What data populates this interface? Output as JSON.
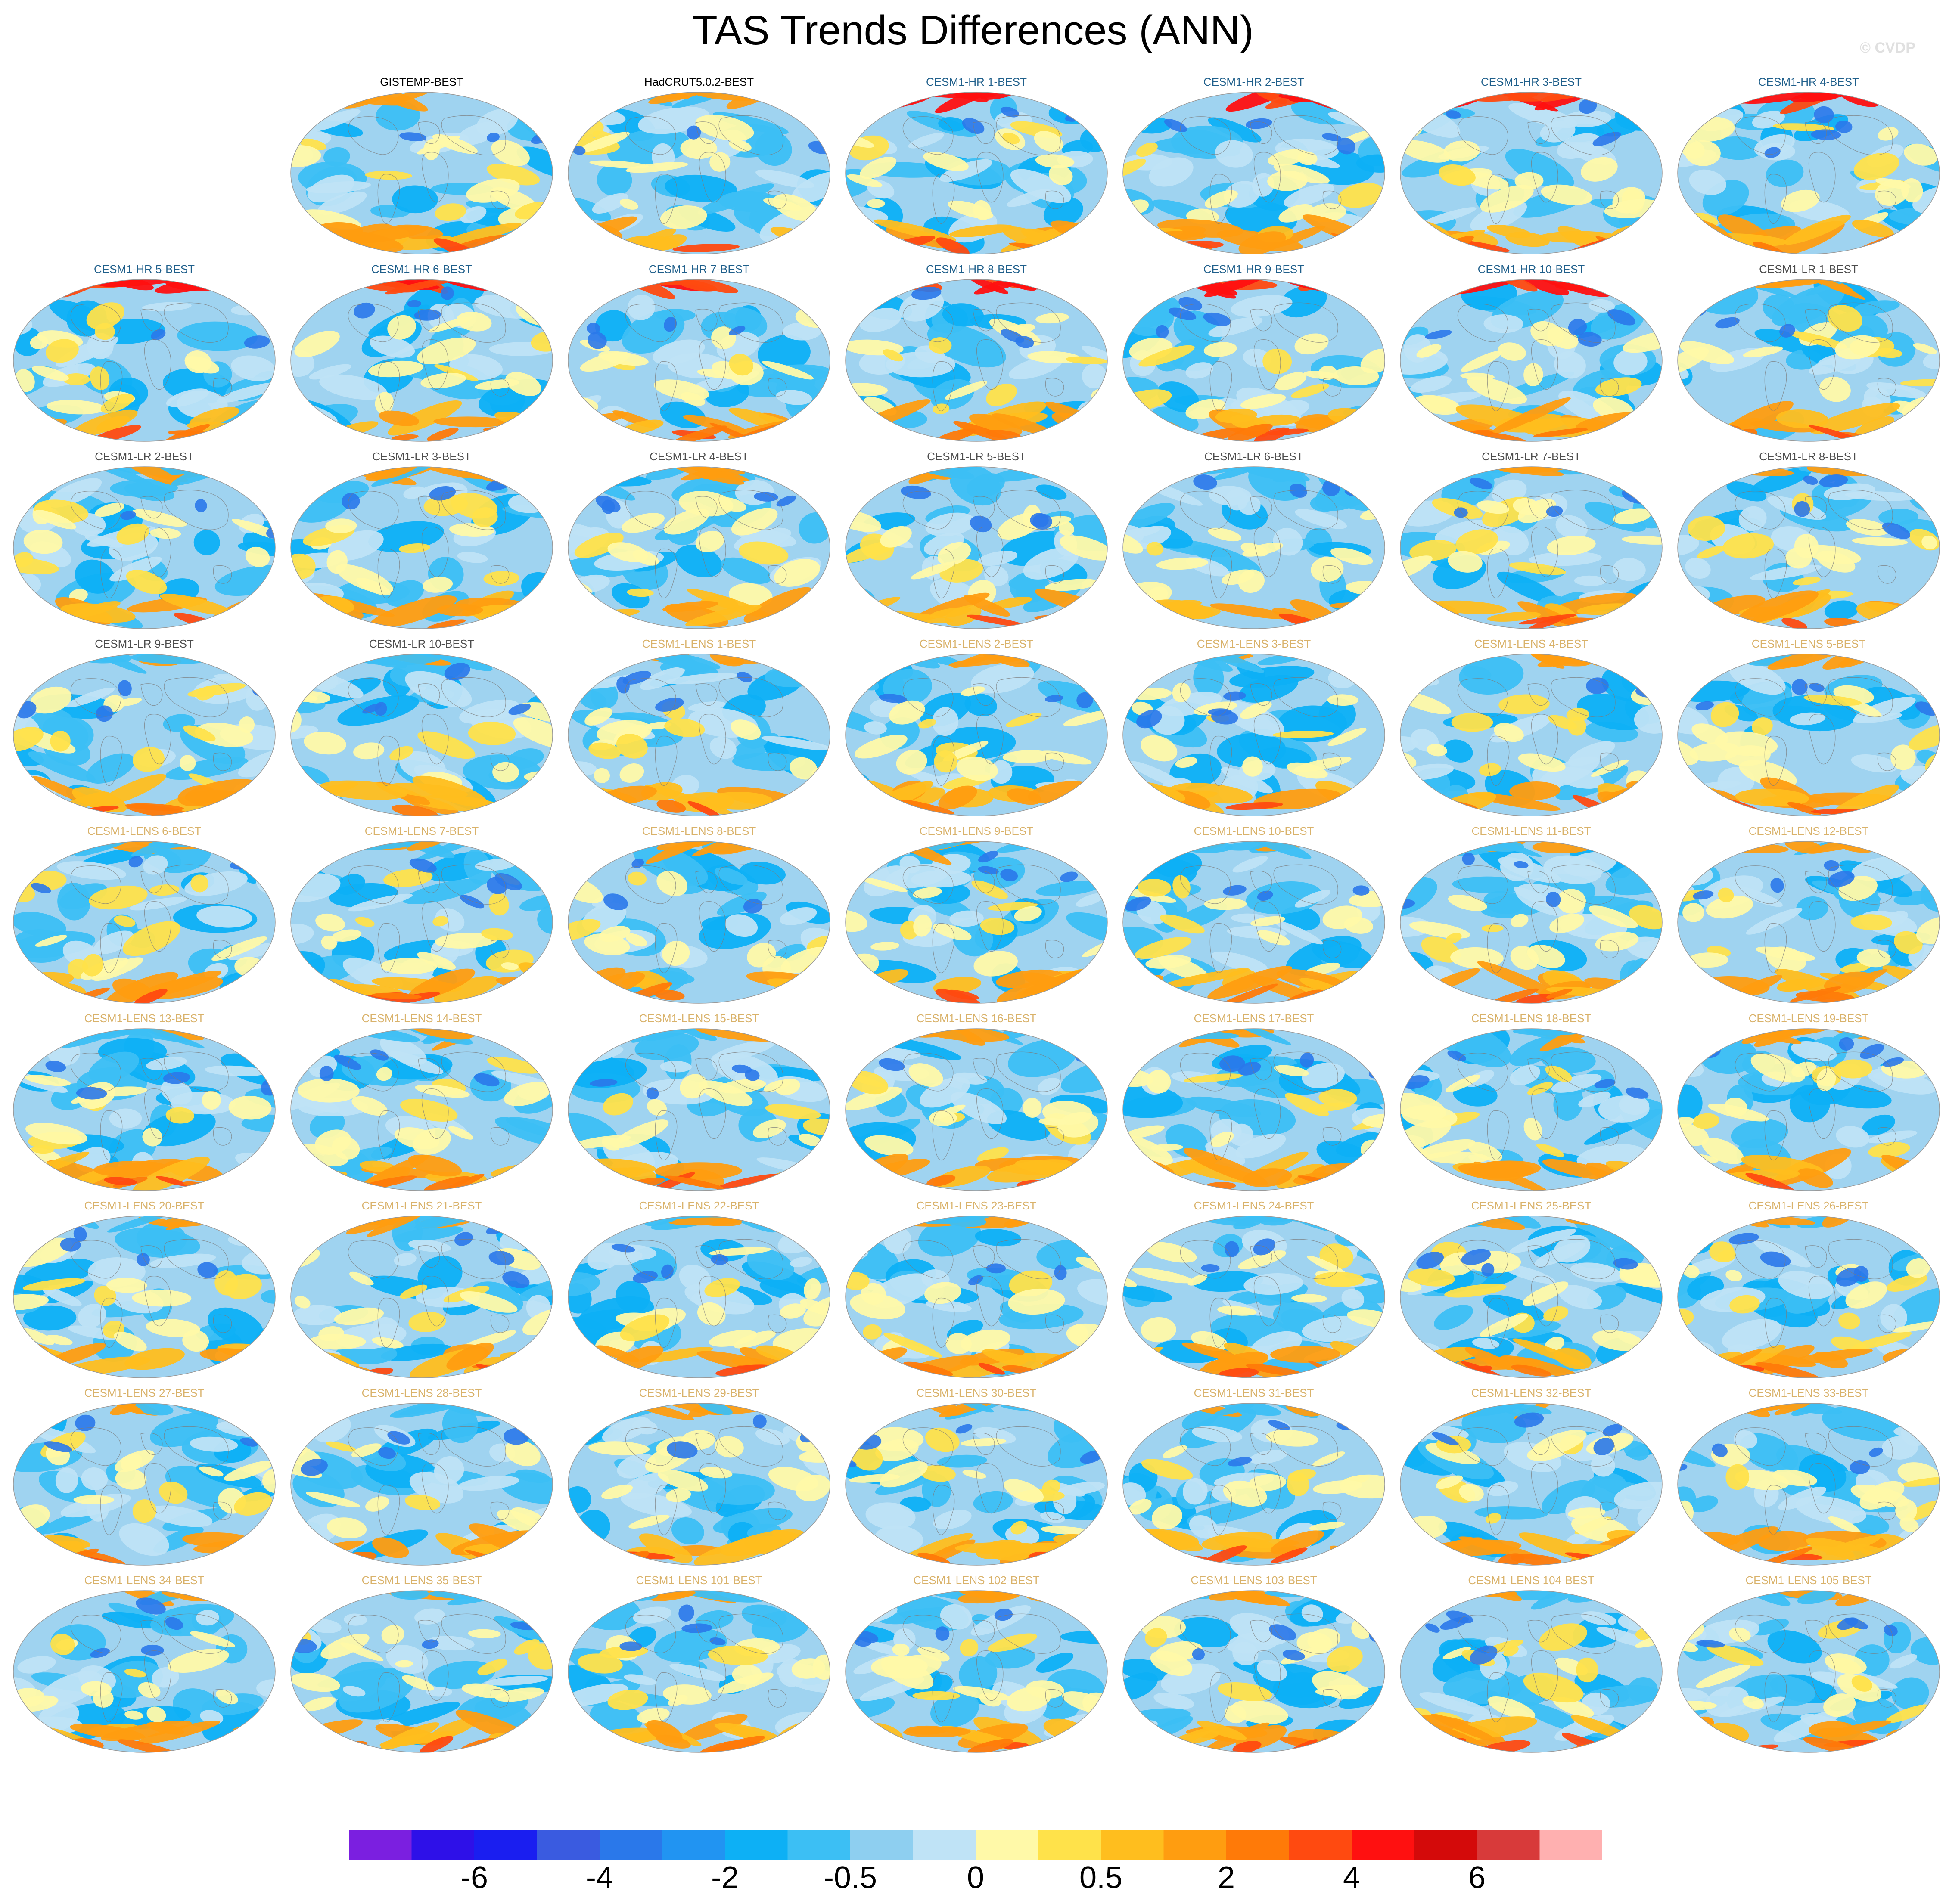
{
  "title": "TAS Trends Differences (ANN)",
  "watermark": "© CVDP",
  "colors": {
    "obs_label": "#000000",
    "hr_label": "#1f5f8b",
    "lr_label": "#4d4d4d",
    "lens_label": "#d9b26a",
    "ocean_base": "#9fd3f0"
  },
  "chart_data": {
    "type": "heatmap",
    "projection": "robinson",
    "grid": false,
    "colorbar": {
      "placement": "bottom",
      "colors": [
        "#7b1fe0",
        "#2e10e8",
        "#1a1ef0",
        "#3a5be0",
        "#2a78ea",
        "#2194f2",
        "#0db0f5",
        "#3cbff4",
        "#8ecff0",
        "#bfe3f6",
        "#fff9a8",
        "#ffe24a",
        "#ffbe1e",
        "#ff9d10",
        "#ff7a08",
        "#ff4a10",
        "#ff1010",
        "#d40a0a",
        "#d83a3a",
        "#ffb0b0"
      ],
      "tick_labels": [
        "-6",
        "-4",
        "-2",
        "-0.5",
        "0",
        "0.5",
        "2",
        "4",
        "6"
      ],
      "tick_boundaries": [
        2,
        4,
        6,
        8,
        10,
        12,
        14,
        16,
        18
      ]
    },
    "panels": [
      {
        "label": "GISTEMP-BEST",
        "group": "obs",
        "row": 0,
        "col": 1
      },
      {
        "label": "HadCRUT5.0.2-BEST",
        "group": "obs",
        "row": 0,
        "col": 2
      },
      {
        "label": "CESM1-HR 1-BEST",
        "group": "hr",
        "row": 0,
        "col": 3
      },
      {
        "label": "CESM1-HR 2-BEST",
        "group": "hr",
        "row": 0,
        "col": 4
      },
      {
        "label": "CESM1-HR 3-BEST",
        "group": "hr",
        "row": 0,
        "col": 5
      },
      {
        "label": "CESM1-HR 4-BEST",
        "group": "hr",
        "row": 0,
        "col": 6
      },
      {
        "label": "CESM1-HR 5-BEST",
        "group": "hr",
        "row": 1,
        "col": 0
      },
      {
        "label": "CESM1-HR 6-BEST",
        "group": "hr",
        "row": 1,
        "col": 1
      },
      {
        "label": "CESM1-HR 7-BEST",
        "group": "hr",
        "row": 1,
        "col": 2
      },
      {
        "label": "CESM1-HR 8-BEST",
        "group": "hr",
        "row": 1,
        "col": 3
      },
      {
        "label": "CESM1-HR 9-BEST",
        "group": "hr",
        "row": 1,
        "col": 4
      },
      {
        "label": "CESM1-HR 10-BEST",
        "group": "hr",
        "row": 1,
        "col": 5
      },
      {
        "label": "CESM1-LR 1-BEST",
        "group": "lr",
        "row": 1,
        "col": 6
      },
      {
        "label": "CESM1-LR 2-BEST",
        "group": "lr",
        "row": 2,
        "col": 0
      },
      {
        "label": "CESM1-LR 3-BEST",
        "group": "lr",
        "row": 2,
        "col": 1
      },
      {
        "label": "CESM1-LR 4-BEST",
        "group": "lr",
        "row": 2,
        "col": 2
      },
      {
        "label": "CESM1-LR 5-BEST",
        "group": "lr",
        "row": 2,
        "col": 3
      },
      {
        "label": "CESM1-LR 6-BEST",
        "group": "lr",
        "row": 2,
        "col": 4
      },
      {
        "label": "CESM1-LR 7-BEST",
        "group": "lr",
        "row": 2,
        "col": 5
      },
      {
        "label": "CESM1-LR 8-BEST",
        "group": "lr",
        "row": 2,
        "col": 6
      },
      {
        "label": "CESM1-LR 9-BEST",
        "group": "lr",
        "row": 3,
        "col": 0
      },
      {
        "label": "CESM1-LR 10-BEST",
        "group": "lr",
        "row": 3,
        "col": 1
      },
      {
        "label": "CESM1-LENS 1-BEST",
        "group": "lens",
        "row": 3,
        "col": 2
      },
      {
        "label": "CESM1-LENS 2-BEST",
        "group": "lens",
        "row": 3,
        "col": 3
      },
      {
        "label": "CESM1-LENS 3-BEST",
        "group": "lens",
        "row": 3,
        "col": 4
      },
      {
        "label": "CESM1-LENS 4-BEST",
        "group": "lens",
        "row": 3,
        "col": 5
      },
      {
        "label": "CESM1-LENS 5-BEST",
        "group": "lens",
        "row": 3,
        "col": 6
      },
      {
        "label": "CESM1-LENS 6-BEST",
        "group": "lens",
        "row": 4,
        "col": 0
      },
      {
        "label": "CESM1-LENS 7-BEST",
        "group": "lens",
        "row": 4,
        "col": 1
      },
      {
        "label": "CESM1-LENS 8-BEST",
        "group": "lens",
        "row": 4,
        "col": 2
      },
      {
        "label": "CESM1-LENS 9-BEST",
        "group": "lens",
        "row": 4,
        "col": 3
      },
      {
        "label": "CESM1-LENS 10-BEST",
        "group": "lens",
        "row": 4,
        "col": 4
      },
      {
        "label": "CESM1-LENS 11-BEST",
        "group": "lens",
        "row": 4,
        "col": 5
      },
      {
        "label": "CESM1-LENS 12-BEST",
        "group": "lens",
        "row": 4,
        "col": 6
      },
      {
        "label": "CESM1-LENS 13-BEST",
        "group": "lens",
        "row": 5,
        "col": 0
      },
      {
        "label": "CESM1-LENS 14-BEST",
        "group": "lens",
        "row": 5,
        "col": 1
      },
      {
        "label": "CESM1-LENS 15-BEST",
        "group": "lens",
        "row": 5,
        "col": 2
      },
      {
        "label": "CESM1-LENS 16-BEST",
        "group": "lens",
        "row": 5,
        "col": 3
      },
      {
        "label": "CESM1-LENS 17-BEST",
        "group": "lens",
        "row": 5,
        "col": 4
      },
      {
        "label": "CESM1-LENS 18-BEST",
        "group": "lens",
        "row": 5,
        "col": 5
      },
      {
        "label": "CESM1-LENS 19-BEST",
        "group": "lens",
        "row": 5,
        "col": 6
      },
      {
        "label": "CESM1-LENS 20-BEST",
        "group": "lens",
        "row": 6,
        "col": 0
      },
      {
        "label": "CESM1-LENS 21-BEST",
        "group": "lens",
        "row": 6,
        "col": 1
      },
      {
        "label": "CESM1-LENS 22-BEST",
        "group": "lens",
        "row": 6,
        "col": 2
      },
      {
        "label": "CESM1-LENS 23-BEST",
        "group": "lens",
        "row": 6,
        "col": 3
      },
      {
        "label": "CESM1-LENS 24-BEST",
        "group": "lens",
        "row": 6,
        "col": 4
      },
      {
        "label": "CESM1-LENS 25-BEST",
        "group": "lens",
        "row": 6,
        "col": 5
      },
      {
        "label": "CESM1-LENS 26-BEST",
        "group": "lens",
        "row": 6,
        "col": 6
      },
      {
        "label": "CESM1-LENS 27-BEST",
        "group": "lens",
        "row": 7,
        "col": 0
      },
      {
        "label": "CESM1-LENS 28-BEST",
        "group": "lens",
        "row": 7,
        "col": 1
      },
      {
        "label": "CESM1-LENS 29-BEST",
        "group": "lens",
        "row": 7,
        "col": 2
      },
      {
        "label": "CESM1-LENS 30-BEST",
        "group": "lens",
        "row": 7,
        "col": 3
      },
      {
        "label": "CESM1-LENS 31-BEST",
        "group": "lens",
        "row": 7,
        "col": 4
      },
      {
        "label": "CESM1-LENS 32-BEST",
        "group": "lens",
        "row": 7,
        "col": 5
      },
      {
        "label": "CESM1-LENS 33-BEST",
        "group": "lens",
        "row": 7,
        "col": 6
      },
      {
        "label": "CESM1-LENS 34-BEST",
        "group": "lens",
        "row": 8,
        "col": 0
      },
      {
        "label": "CESM1-LENS 35-BEST",
        "group": "lens",
        "row": 8,
        "col": 1
      },
      {
        "label": "CESM1-LENS 101-BEST",
        "group": "lens",
        "row": 8,
        "col": 2
      },
      {
        "label": "CESM1-LENS 102-BEST",
        "group": "lens",
        "row": 8,
        "col": 3
      },
      {
        "label": "CESM1-LENS 103-BEST",
        "group": "lens",
        "row": 8,
        "col": 4
      },
      {
        "label": "CESM1-LENS 104-BEST",
        "group": "lens",
        "row": 8,
        "col": 5
      },
      {
        "label": "CESM1-LENS 105-BEST",
        "group": "lens",
        "row": 8,
        "col": 6
      }
    ]
  }
}
